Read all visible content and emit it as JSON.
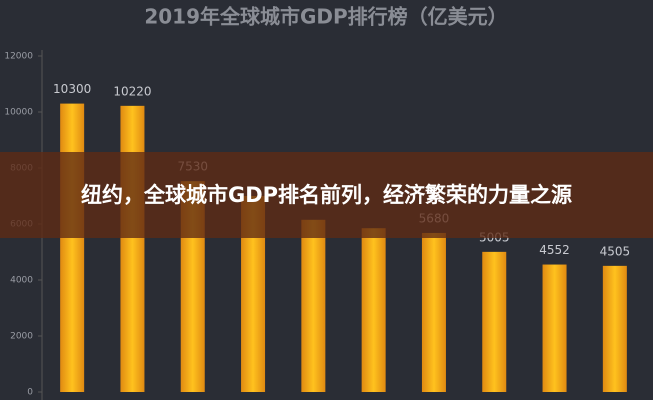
{
  "chart_data": {
    "type": "bar",
    "title": "2019年全球城市GDP排行榜（亿美元）",
    "values": [
      10300,
      10220,
      7530,
      7000,
      6150,
      5850,
      5680,
      5005,
      4552,
      4505
    ],
    "value_labels": [
      "10300",
      "10220",
      "7530",
      null,
      null,
      null,
      "5680",
      "5005",
      "4552",
      "4505"
    ],
    "color": "#f5a623",
    "ylim": [
      0,
      12000
    ],
    "yticks": [
      0,
      2000,
      4000,
      6000,
      8000,
      10000,
      12000
    ],
    "grid": false
  },
  "overlay_caption": "纽约，全球城市GDP排名前列，经济繁荣的力量之源"
}
